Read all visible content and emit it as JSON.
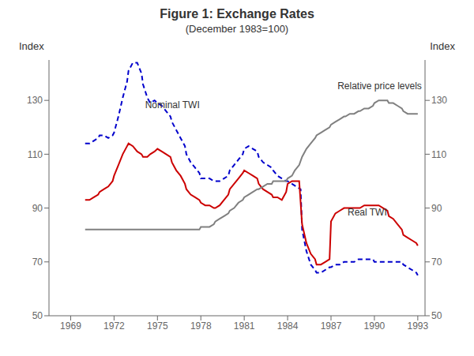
{
  "chart_data": {
    "type": "line",
    "title": "Figure 1: Exchange Rates",
    "subtitle": "(December 1983=100)",
    "ylabel": "Index",
    "y2label": "Index",
    "xlim": [
      1967.5,
      1993.5
    ],
    "xticks": [
      1969,
      1972,
      1975,
      1978,
      1981,
      1984,
      1987,
      1990,
      1993
    ],
    "ylim": [
      50,
      145
    ],
    "yticks": [
      50,
      70,
      90,
      110,
      130
    ],
    "y2lim": [
      50,
      145
    ],
    "y2ticks": [
      50,
      70,
      90,
      110,
      130
    ],
    "grid": false,
    "series": [
      {
        "name": "Nominal TWI",
        "color": "#0000cc",
        "line_style": "dashed",
        "x": [
          1970.0,
          1970.3,
          1970.6,
          1970.9,
          1971.0,
          1971.3,
          1971.6,
          1971.9,
          1972.0,
          1972.3,
          1972.6,
          1972.9,
          1973.0,
          1973.3,
          1973.6,
          1973.9,
          1974.0,
          1974.3,
          1974.5,
          1974.8,
          1975.0,
          1975.3,
          1975.6,
          1975.9,
          1976.0,
          1976.3,
          1976.6,
          1976.9,
          1977.0,
          1977.3,
          1977.6,
          1977.9,
          1978.0,
          1978.3,
          1978.6,
          1978.9,
          1979.0,
          1979.3,
          1979.6,
          1979.9,
          1980.0,
          1980.3,
          1980.6,
          1980.9,
          1981.0,
          1981.3,
          1981.6,
          1981.9,
          1982.0,
          1982.3,
          1982.6,
          1982.9,
          1983.0,
          1983.3,
          1983.6,
          1983.9,
          1984.0,
          1984.3,
          1984.6,
          1984.9,
          1985.0,
          1985.3,
          1985.6,
          1985.9,
          1986.0,
          1986.3,
          1986.6,
          1986.9,
          1987.0,
          1987.3,
          1987.6,
          1987.9,
          1988.0,
          1988.3,
          1988.6,
          1988.9,
          1989.0,
          1989.3,
          1989.6,
          1989.9,
          1990.0,
          1990.3,
          1990.6,
          1990.9,
          1991.0,
          1991.3,
          1991.6,
          1991.9,
          1992.0,
          1992.3,
          1992.6,
          1992.9,
          1993.0
        ],
        "values": [
          114,
          114,
          115,
          116,
          117,
          117,
          116,
          117,
          118,
          124,
          131,
          137,
          141,
          144,
          144,
          140,
          136,
          131,
          129,
          130,
          129,
          128,
          126,
          124,
          122,
          119,
          116,
          113,
          110,
          107,
          105,
          103,
          101,
          101,
          101,
          100,
          100,
          100,
          101,
          102,
          104,
          106,
          108,
          110,
          112,
          113,
          112,
          111,
          109,
          107,
          106,
          105,
          104,
          102,
          101,
          100,
          100,
          99,
          98,
          97,
          82,
          74,
          69,
          67,
          66,
          66,
          67,
          68,
          68,
          69,
          69,
          70,
          70,
          70,
          70,
          71,
          71,
          71,
          71,
          71,
          70,
          70,
          70,
          70,
          70,
          70,
          70,
          70,
          69,
          68,
          67,
          66,
          65
        ]
      },
      {
        "name": "Real TWI",
        "color": "#cc0000",
        "line_style": "solid",
        "x": [
          1970.0,
          1970.3,
          1970.6,
          1970.9,
          1971.0,
          1971.3,
          1971.6,
          1971.9,
          1972.0,
          1972.3,
          1972.6,
          1972.9,
          1973.0,
          1973.3,
          1973.6,
          1973.9,
          1974.0,
          1974.3,
          1974.5,
          1974.8,
          1975.0,
          1975.3,
          1975.6,
          1975.9,
          1976.0,
          1976.3,
          1976.6,
          1976.9,
          1977.0,
          1977.3,
          1977.6,
          1977.9,
          1978.0,
          1978.3,
          1978.6,
          1978.9,
          1979.0,
          1979.3,
          1979.6,
          1979.9,
          1980.0,
          1980.3,
          1980.6,
          1980.9,
          1981.0,
          1981.3,
          1981.6,
          1981.9,
          1982.0,
          1982.3,
          1982.6,
          1982.9,
          1983.0,
          1983.3,
          1983.6,
          1983.9,
          1984.0,
          1984.3,
          1984.5,
          1984.8,
          1985.0,
          1985.3,
          1985.6,
          1985.9,
          1986.0,
          1986.3,
          1986.6,
          1986.9,
          1987.0,
          1987.3,
          1987.6,
          1987.9,
          1988.0,
          1988.3,
          1988.6,
          1988.9,
          1989.0,
          1989.3,
          1989.6,
          1989.9,
          1990.0,
          1990.3,
          1990.6,
          1990.9,
          1991.0,
          1991.3,
          1991.6,
          1991.9,
          1992.0,
          1992.3,
          1992.6,
          1992.9,
          1993.0
        ],
        "values": [
          93,
          93,
          94,
          95,
          96,
          97,
          98,
          100,
          102,
          106,
          110,
          113,
          114,
          113,
          111,
          110,
          109,
          109,
          110,
          111,
          112,
          111,
          110,
          109,
          107,
          104,
          102,
          99,
          97,
          95,
          94,
          93,
          92,
          91,
          91,
          90,
          90,
          91,
          93,
          95,
          97,
          99,
          101,
          103,
          104,
          103,
          102,
          101,
          99,
          97,
          96,
          95,
          94,
          94,
          93,
          96,
          99,
          100,
          100,
          100,
          84,
          77,
          73,
          71,
          69,
          69,
          70,
          71,
          85,
          88,
          89,
          90,
          90,
          90,
          90,
          90,
          90,
          91,
          91,
          91,
          91,
          91,
          90,
          89,
          87,
          86,
          84,
          82,
          80,
          79,
          78,
          77,
          76
        ]
      },
      {
        "name": "Relative price levels",
        "color": "#808080",
        "line_style": "solid",
        "x": [
          1970.0,
          1970.3,
          1970.6,
          1970.9,
          1971.0,
          1971.3,
          1971.6,
          1971.9,
          1972.0,
          1972.3,
          1972.6,
          1972.9,
          1973.0,
          1973.3,
          1973.6,
          1973.9,
          1974.0,
          1974.3,
          1974.5,
          1974.8,
          1975.0,
          1975.3,
          1975.6,
          1975.9,
          1976.0,
          1976.3,
          1976.6,
          1976.9,
          1977.0,
          1977.3,
          1977.6,
          1977.9,
          1978.0,
          1978.3,
          1978.6,
          1978.9,
          1979.0,
          1979.3,
          1979.6,
          1979.9,
          1980.0,
          1980.3,
          1980.6,
          1980.9,
          1981.0,
          1981.3,
          1981.6,
          1981.9,
          1982.0,
          1982.3,
          1982.6,
          1982.9,
          1983.0,
          1983.3,
          1983.6,
          1983.9,
          1984.0,
          1984.3,
          1984.5,
          1984.8,
          1985.0,
          1985.3,
          1985.6,
          1985.9,
          1986.0,
          1986.3,
          1986.6,
          1986.9,
          1987.0,
          1987.3,
          1987.6,
          1987.9,
          1988.0,
          1988.3,
          1988.6,
          1988.9,
          1989.0,
          1989.3,
          1989.6,
          1989.9,
          1990.0,
          1990.3,
          1990.6,
          1990.9,
          1991.0,
          1991.3,
          1991.6,
          1991.9,
          1992.0,
          1992.3,
          1992.6,
          1992.9,
          1993.0
        ],
        "values": [
          82,
          82,
          82,
          82,
          82,
          82,
          82,
          82,
          82,
          82,
          82,
          82,
          82,
          82,
          82,
          82,
          82,
          82,
          82,
          82,
          82,
          82,
          82,
          82,
          82,
          82,
          82,
          82,
          82,
          82,
          82,
          82,
          83,
          83,
          83,
          84,
          85,
          86,
          87,
          88,
          89,
          90,
          92,
          93,
          94,
          95,
          96,
          97,
          97,
          98,
          99,
          99,
          100,
          100,
          100,
          100,
          101,
          102,
          104,
          106,
          109,
          112,
          114,
          116,
          117,
          118,
          119,
          120,
          121,
          122,
          123,
          124,
          124,
          125,
          125,
          126,
          126,
          127,
          127,
          128,
          129,
          130,
          130,
          130,
          129,
          129,
          128,
          127,
          126,
          125,
          125,
          125,
          125
        ]
      }
    ],
    "annotations": [
      {
        "text": "Nominal TWI",
        "x": 1974.2,
        "y": 126
      },
      {
        "text": "Real TWI",
        "x": 1988.2,
        "y": 86
      },
      {
        "text": "Relative price levels",
        "x": 1987.5,
        "y": 133
      }
    ]
  }
}
